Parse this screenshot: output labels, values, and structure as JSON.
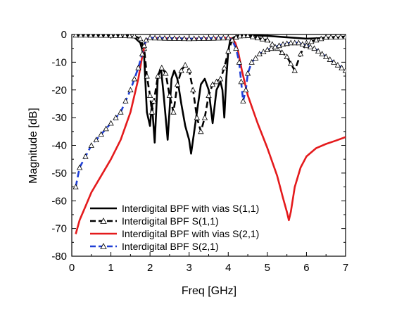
{
  "chart_data": {
    "type": "line",
    "xlabel": "Freq [GHz]",
    "ylabel": "Magnitude [dB]",
    "xlim": [
      0,
      7
    ],
    "ylim": [
      -80,
      0
    ],
    "xticks": [
      0,
      1,
      2,
      3,
      4,
      5,
      6,
      7
    ],
    "yticks": [
      0,
      -10,
      -20,
      -30,
      -40,
      -50,
      -60,
      -70,
      -80
    ],
    "grid": false,
    "legend_position": "bottom-left",
    "series": [
      {
        "name": "Interdigital BPF with vias S(1,1)",
        "color": "#000000",
        "dash": "solid",
        "marker": "none",
        "x": [
          0.1,
          1.0,
          1.6,
          1.75,
          1.85,
          1.92,
          2.0,
          2.05,
          2.12,
          2.2,
          2.28,
          2.35,
          2.45,
          2.55,
          2.62,
          2.7,
          2.8,
          2.9,
          3.0,
          3.05,
          3.1,
          3.2,
          3.3,
          3.4,
          3.5,
          3.6,
          3.7,
          3.8,
          3.85,
          3.9,
          3.95,
          4.0,
          4.05,
          4.15,
          4.25,
          4.4,
          5.0,
          6.0,
          7.0
        ],
        "y": [
          -0.2,
          -0.5,
          -1,
          -3,
          -8,
          -28,
          -33,
          -25,
          -39,
          -15,
          -12,
          -22,
          -38,
          -16,
          -13,
          -16,
          -25,
          -33,
          -38,
          -43,
          -38,
          -28,
          -18,
          -16,
          -20,
          -32,
          -20,
          -17,
          -20,
          -30,
          -16,
          -6,
          -2,
          -1,
          -0.5,
          -0.3,
          -0.5,
          -1.5,
          -1
        ]
      },
      {
        "name": "Interdigital BPF S(1,1)",
        "color": "#000000",
        "dash": "dashed",
        "marker": "triangle",
        "x": [
          0.1,
          1.0,
          1.6,
          1.75,
          1.85,
          1.92,
          2.0,
          2.05,
          2.1,
          2.2,
          2.3,
          2.4,
          2.5,
          2.6,
          2.7,
          2.8,
          2.9,
          3.0,
          3.1,
          3.2,
          3.3,
          3.4,
          3.5,
          3.6,
          3.7,
          3.8,
          3.9,
          4.0,
          4.1,
          4.2,
          4.3,
          4.5,
          5.0,
          5.5,
          5.7,
          5.85,
          6.0,
          6.5,
          7.0
        ],
        "y": [
          -0.2,
          -0.3,
          -0.5,
          -1.5,
          -5,
          -15,
          -22,
          -28,
          -24,
          -15,
          -12,
          -14,
          -22,
          -28,
          -18,
          -13,
          -11,
          -13,
          -20,
          -30,
          -35,
          -30,
          -22,
          -18,
          -17,
          -16,
          -12,
          -6,
          -2,
          -1,
          -0.5,
          -0.4,
          -2,
          -8,
          -13,
          -7,
          -3,
          -1,
          -0.8
        ]
      },
      {
        "name": "Interdigital BPF with vias S(2,1)",
        "color": "#e41a1c",
        "dash": "solid",
        "marker": "none",
        "x": [
          0.1,
          0.2,
          0.35,
          0.5,
          0.75,
          1.0,
          1.25,
          1.5,
          1.7,
          1.8,
          1.86,
          1.9,
          2.0,
          3.0,
          4.0,
          4.1,
          4.18,
          4.25,
          4.35,
          4.5,
          4.75,
          5.0,
          5.25,
          5.4,
          5.5,
          5.55,
          5.6,
          5.7,
          5.85,
          6.0,
          6.25,
          6.5,
          6.75,
          7.0
        ],
        "y": [
          -72,
          -67,
          -62,
          -57,
          -51,
          -45,
          -38,
          -28,
          -16,
          -8,
          -4,
          -2,
          -1.2,
          -1.5,
          -1.2,
          -1.5,
          -3,
          -6,
          -13,
          -22,
          -32,
          -41,
          -51,
          -59,
          -64,
          -67,
          -64,
          -55,
          -48,
          -44,
          -41,
          -39.5,
          -38.3,
          -37
        ]
      },
      {
        "name": "Interdigital BPF S(2,1)",
        "color": "#1f3fd6",
        "dash": "dashed",
        "marker": "triangle",
        "x": [
          0.1,
          0.2,
          0.35,
          0.5,
          0.75,
          1.0,
          1.25,
          1.5,
          1.7,
          1.8,
          1.85,
          1.9,
          2.0,
          3.0,
          4.0,
          4.1,
          4.2,
          4.28,
          4.33,
          4.38,
          4.45,
          4.5,
          4.6,
          4.8,
          5.0,
          5.2,
          5.4,
          5.6,
          5.8,
          6.0,
          6.2,
          6.4,
          6.6,
          6.8,
          7.0
        ],
        "y": [
          -55,
          -48,
          -44,
          -40,
          -36,
          -32,
          -28,
          -20,
          -12,
          -7,
          -4,
          -2,
          -1.2,
          -1.5,
          -1.2,
          -2,
          -5,
          -10,
          -17,
          -24,
          -20,
          -14,
          -10,
          -7,
          -5.5,
          -4.5,
          -3.5,
          -3,
          -3,
          -4,
          -5,
          -7,
          -9,
          -11,
          -13
        ]
      }
    ]
  }
}
